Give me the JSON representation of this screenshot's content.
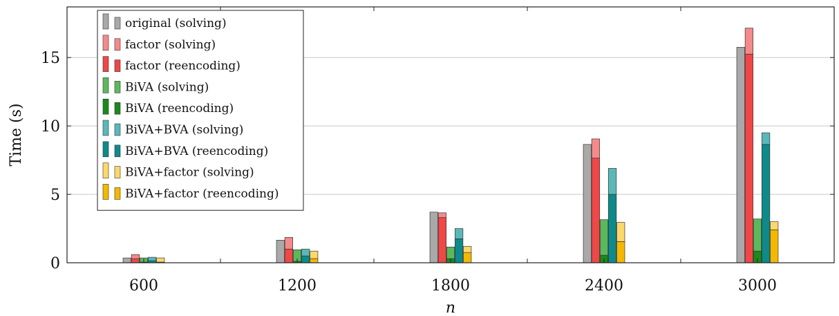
{
  "chart_data": {
    "type": "bar",
    "xlabel": "n",
    "ylabel": "Time (s)",
    "categories": [
      "600",
      "1200",
      "1800",
      "2400",
      "3000"
    ],
    "ylim": [
      0,
      18.7
    ],
    "yticks": [
      0,
      5,
      10,
      15
    ],
    "grid": "horizontal",
    "legend_position": "top-left",
    "groups": [
      {
        "name": "original",
        "stacks": [
          {
            "name": "original (solving)",
            "color": "#a9a9a9",
            "values": [
              0.35,
              1.65,
              3.7,
              8.65,
              15.75
            ]
          }
        ]
      },
      {
        "name": "factor",
        "stacks": [
          {
            "name": "factor (reencoding)",
            "color": "#f04747",
            "values": [
              0.3,
              1.0,
              3.3,
              7.65,
              15.25
            ]
          },
          {
            "name": "factor (solving)",
            "color": "#f58a8a",
            "values": [
              0.3,
              0.85,
              0.35,
              1.4,
              1.9
            ]
          }
        ]
      },
      {
        "name": "BiVA",
        "stacks": [
          {
            "name": "BiVA (reencoding)",
            "color": "#1a8a1a",
            "values": [
              0.05,
              0.1,
              0.3,
              0.55,
              0.85
            ]
          },
          {
            "name": "BiVA (solving)",
            "color": "#5cb85c",
            "values": [
              0.3,
              0.85,
              0.85,
              2.6,
              2.35
            ]
          }
        ]
      },
      {
        "name": "BiVA+BVA",
        "stacks": [
          {
            "name": "BiVA+BVA (reencoding)",
            "color": "#0e8a8a",
            "values": [
              0.15,
              0.5,
              1.75,
              5.0,
              8.65
            ]
          },
          {
            "name": "BiVA+BVA (solving)",
            "color": "#5cb8b8",
            "values": [
              0.25,
              0.5,
              0.75,
              1.9,
              0.85
            ]
          }
        ]
      },
      {
        "name": "BiVA+factor",
        "stacks": [
          {
            "name": "BiVA+factor (reencoding)",
            "color": "#f5b800",
            "values": [
              0.05,
              0.3,
              0.75,
              1.55,
              2.4
            ]
          },
          {
            "name": "BiVA+factor (solving)",
            "color": "#fbd86a",
            "values": [
              0.3,
              0.55,
              0.45,
              1.4,
              0.6
            ]
          }
        ]
      }
    ],
    "legend": [
      {
        "label": "original (solving)",
        "color": "#a9a9a9"
      },
      {
        "label": "factor (solving)",
        "color": "#f58a8a"
      },
      {
        "label": "factor (reencoding)",
        "color": "#f04747"
      },
      {
        "label": "BiVA (solving)",
        "color": "#5cb85c"
      },
      {
        "label": "BiVA (reencoding)",
        "color": "#1a8a1a"
      },
      {
        "label": "BiVA+BVA (solving)",
        "color": "#5cb8b8"
      },
      {
        "label": "BiVA+BVA (reencoding)",
        "color": "#0e8a8a"
      },
      {
        "label": "BiVA+factor (solving)",
        "color": "#fbd86a"
      },
      {
        "label": "BiVA+factor (reencoding)",
        "color": "#f5b800"
      }
    ]
  }
}
